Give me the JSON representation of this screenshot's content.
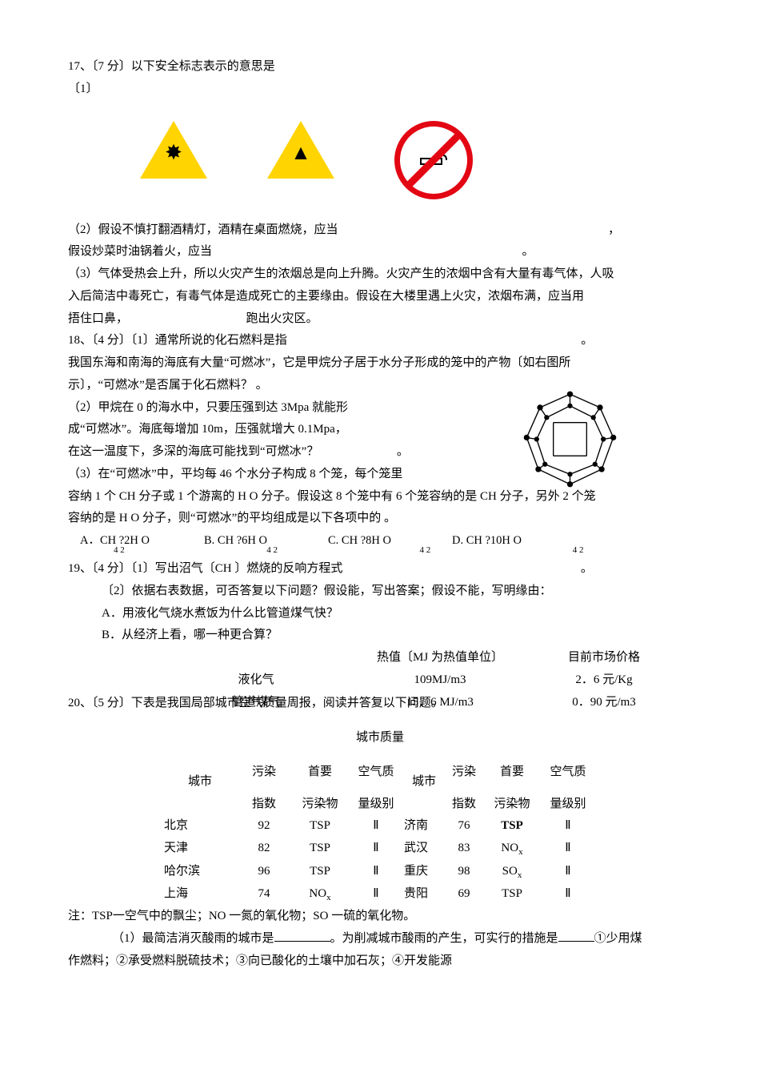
{
  "q17": {
    "header": "17、〔7 分〕以下安全标志表示的意思是",
    "sub1": "〔1〕",
    "icons": [
      {
        "name": "explosion-warning-icon",
        "glyph": "✸"
      },
      {
        "name": "flammable-warning-icon",
        "glyph": "▲"
      },
      {
        "name": "no-smoking-icon",
        "glyph": "🚬"
      }
    ],
    "line2a": "（2）假设不慎打翻酒精灯，酒精在桌面燃烧，应当",
    "line2a_tail": "，",
    "line2b": "假设炒菜时油锅着火，应当",
    "line2b_tail": "。",
    "line3a": "（3）气体受热会上升，所以火灾产生的浓烟总是向上升腾。火灾产生的浓烟中含有大量有毒气体，人吸",
    "line3b": "入后简洁中毒死亡，有毒气体是造成死亡的主要缘由。假设在大楼里遇上火灾，浓烟布满，应当用",
    "line3c_a": "捂住口鼻，",
    "line3c_b": "跑出火灾区。"
  },
  "q18": {
    "header": "18、〔4 分〕〔1〕通常所说的化石燃料是指",
    "header_tail": "。",
    "l1": "我国东海和南海的海底有大量“可燃冰”，它是甲烷分子居于水分子形成的笼中的产物〔如右图所",
    "l2": "示〕，“可燃冰”是否属于化石燃料？    。",
    "l3": "（2）甲烷在 0 的海水中，只要压强到达 3Mpa 就能形",
    "l4": "成“可燃冰”。海底每增加 10m，压强就增大 0.1Mpa，",
    "l5": "在这一温度下，多深的海底可能找到“可燃冰”？",
    "l5_tail": "。",
    "l6": "（3）在“可燃冰”中，平均每 46 个水分子构成 8 个笼，每个笼里",
    "l7a": "容纳 1 个 CH 分子或 1 个游离的 H O 分子。假设这 8 个笼中有 6 个笼容纳的是 CH  分子，另外 2 个笼",
    "l8": "容纳的是 H O 分子，则“可燃冰”的平均组成是以下各项中的      。",
    "opts": {
      "A": "A．CH  ?2H  O",
      "B": "B. CH  ?6H  O",
      "C": "C. CH  ?8H  O",
      "D": "D. CH  ?10H  O",
      "sub": "4          2"
    }
  },
  "q19": {
    "header": "19、〔4 分〕〔1〕写出沼气〔CH  〕燃烧的反响方程式",
    "header_tail": "。",
    "l2": "〔2〕依据右表数据，可否答复以下问题？假设能，写出答案；假设不能，写明缘由：",
    "lA": "A．用液化气烧水煮饭为什么比管道煤气快？",
    "lB": "B．从经济上看，哪一种更合算？",
    "tbl": {
      "h1": "热值〔MJ 为热值单位〕",
      "h2": "目前市场价格",
      "r1": {
        "name": "液化气",
        "hv": "109MJ/m3",
        "price": "2．6 元/Kg"
      },
      "r2": {
        "name": "管道煤气",
        "hv": "15．6 MJ/m3",
        "price": "0．90 元/m3"
      }
    }
  },
  "q20": {
    "header": "20、〔5 分〕下表是我国局部城市空气质量周报，阅读并答复以下问题。",
    "title": "城市质量",
    "cols": {
      "city": "城市",
      "idx_a": "污染",
      "idx_b": "指数",
      "pol_a": "首要",
      "pol_b": "污染物",
      "lvl_a": "空气质",
      "lvl_b": "量级别"
    },
    "rows": [
      {
        "c1": "北京",
        "i1": "92",
        "p1": "TSP",
        "l1": "Ⅱ",
        "c2": "济南",
        "i2": "76",
        "p2": "TSP",
        "l2": "Ⅱ",
        "p2_bold": true
      },
      {
        "c1": "天津",
        "i1": "82",
        "p1": "TSP",
        "l1": "Ⅱ",
        "c2": "武汉",
        "i2": "83",
        "p2": "NO",
        "p2_sub": "x",
        "l2": "Ⅱ"
      },
      {
        "c1": "哈尔滨",
        "i1": "96",
        "p1": "TSP",
        "l1": "Ⅱ",
        "c2": "重庆",
        "i2": "98",
        "p2": "SO",
        "p2_sub": "x",
        "l2": "Ⅱ"
      },
      {
        "c1": "上海",
        "i1": "74",
        "p1": "NO",
        "p1_sub": "x",
        "l1": "Ⅱ",
        "c2": "贵阳",
        "i2": "69",
        "p2": "TSP",
        "l2": "Ⅱ"
      }
    ],
    "note": "注：TSP一空气中的飘尘；NO 一氮的氧化物；SO 一硫的氧化物。",
    "q1a": "（1）最简洁消灭酸雨的城市是",
    "q1b": "。为削减城市酸雨的产生，可实行的措施是",
    "q1c": "①少用煤",
    "q1d": "作燃料；②承受燃料脱硫技术；③向已酸化的土壤中加石灰；④开发能源"
  },
  "colors": {
    "text": "#000000",
    "bg": "#ffffff",
    "warn_fill": "#ffd400",
    "prohibit": "#e30613"
  }
}
